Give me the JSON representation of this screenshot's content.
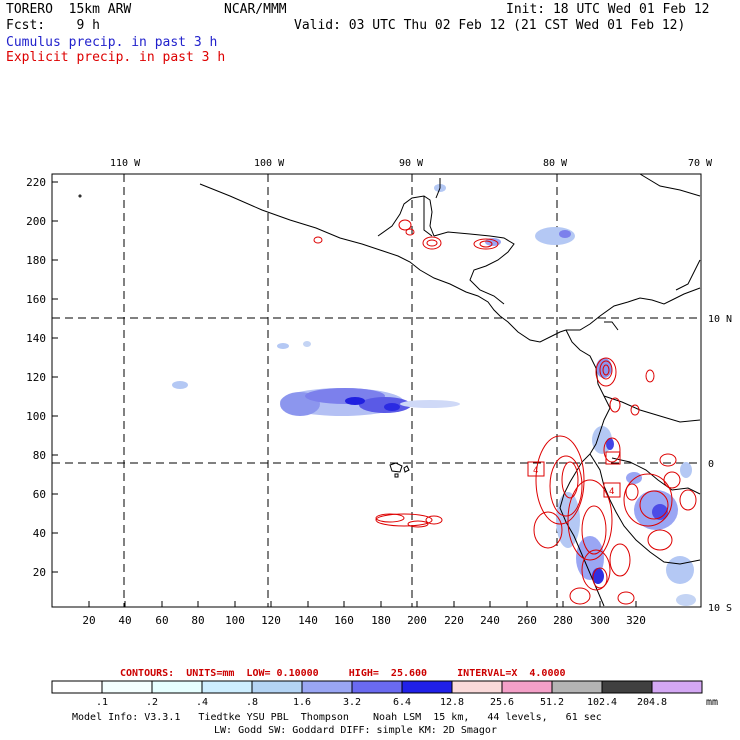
{
  "header": {
    "model": "TORERO  15km ARW",
    "org": "NCAR/MMM",
    "init": "Init: 18 UTC Wed 01 Feb 12",
    "fcst": "Fcst:    9 h",
    "valid": "Valid: 03 UTC Thu 02 Feb 12 (21 CST Wed 01 Feb 12)",
    "cumulus_label": "Cumulus precip. in past 3 h",
    "explicit_label": "Explicit precip. in past 3 h"
  },
  "colors": {
    "cumulus": "#2222cc",
    "explicit": "#dd0000",
    "coast": "#000000"
  },
  "map": {
    "lon_labels": [
      "110 W",
      "100 W",
      "90 W",
      "80 W",
      "70 W"
    ],
    "lat_labels": [
      "10 N",
      "0",
      "10 S"
    ],
    "y_ticks": [
      "220",
      "200",
      "180",
      "160",
      "140",
      "120",
      "100",
      "80",
      "60",
      "40",
      "20"
    ],
    "x_ticks": [
      "20",
      "40",
      "60",
      "80",
      "100",
      "120",
      "140",
      "160",
      "180",
      "200",
      "220",
      "240",
      "260",
      "280",
      "300",
      "320"
    ],
    "contour_box_labels": [
      "4",
      "4"
    ]
  },
  "footer": {
    "contours_line": "CONTOURS:  UNITS=mm  LOW= 0.10000     HIGH=  25.600     INTERVAL=X  4.0000",
    "colorbar_values": [
      ".1",
      ".2",
      ".4",
      ".8",
      "1.6",
      "3.2",
      "6.4",
      "12.8",
      "25.6",
      "51.2",
      "102.4",
      "204.8"
    ],
    "colorbar_unit": "mm",
    "colorbar_colors": [
      "#ffffff",
      "#f4ffff",
      "#e6ffff",
      "#cdeeff",
      "#b4d4f4",
      "#9aa6f4",
      "#6a6af0",
      "#2020e8",
      "#fadada",
      "#f4a0c8",
      "#b4b4b4",
      "#404040",
      "#d4a8f4"
    ],
    "model_info_1": "Model Info: V3.3.1   Tiedtke YSU PBL  Thompson    Noah LSM  15 km,   44 levels,   61 sec",
    "model_info_2": "LW: Godd SW: Goddard DIFF: simple KM: 2D Smagor"
  }
}
